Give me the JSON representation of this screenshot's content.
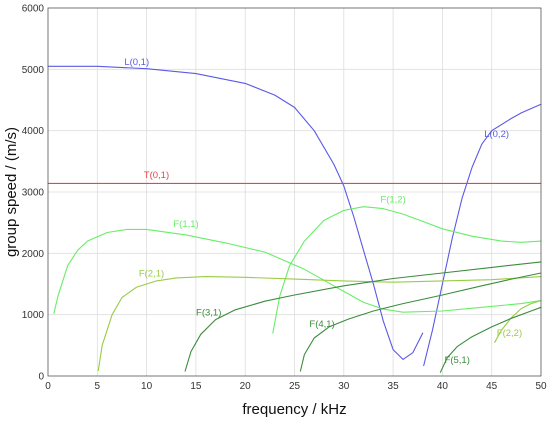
{
  "chart_data": {
    "type": "line",
    "xlabel": "frequency / kHz",
    "ylabel": "group speed / (m/s)",
    "xlim": [
      0,
      50
    ],
    "ylim": [
      0,
      6000
    ],
    "x_ticks": [
      0,
      5,
      10,
      15,
      20,
      25,
      30,
      35,
      40,
      45,
      50
    ],
    "y_ticks": [
      0,
      1000,
      2000,
      3000,
      4000,
      5000,
      6000
    ],
    "grid": true,
    "colors": {
      "longitudinal": "#5a5ae6",
      "torsional": "#e64646",
      "flexural_light": "#66ee66",
      "flexural_mid": "#99cc44",
      "flexural_dark": "#3c8c3c"
    },
    "series": [
      {
        "name": "L(0,1)",
        "color": "#5a5ae6",
        "label_at": [
          9,
          5070
        ],
        "points": [
          [
            0,
            5050
          ],
          [
            5,
            5050
          ],
          [
            10,
            5010
          ],
          [
            15,
            4930
          ],
          [
            20,
            4770
          ],
          [
            23,
            4580
          ],
          [
            25,
            4380
          ],
          [
            27,
            4000
          ],
          [
            29,
            3450
          ],
          [
            30,
            3100
          ],
          [
            31,
            2600
          ],
          [
            32,
            2050
          ],
          [
            33,
            1500
          ],
          [
            34,
            900
          ],
          [
            35,
            430
          ],
          [
            36,
            270
          ],
          [
            37,
            380
          ],
          [
            38,
            700
          ]
        ]
      },
      {
        "name": "L(0,2)",
        "color": "#5a5ae6",
        "label_at": [
          45.5,
          3900
        ],
        "points": [
          [
            38.1,
            170
          ],
          [
            39,
            750
          ],
          [
            40,
            1500
          ],
          [
            41,
            2250
          ],
          [
            42,
            2900
          ],
          [
            43,
            3400
          ],
          [
            44,
            3780
          ],
          [
            45,
            4000
          ],
          [
            47,
            4200
          ],
          [
            48,
            4290
          ],
          [
            50,
            4430
          ]
        ]
      },
      {
        "name": "T(0,1)",
        "color": "#e64646",
        "label_at": [
          11,
          3230
        ],
        "points": [
          [
            0,
            3140
          ],
          [
            50,
            3140
          ]
        ]
      },
      {
        "name": "F(1,1)",
        "color": "#66ee66",
        "label_at": [
          14,
          2430
        ],
        "points": [
          [
            0.6,
            1020
          ],
          [
            1,
            1300
          ],
          [
            2,
            1800
          ],
          [
            3,
            2050
          ],
          [
            4,
            2200
          ],
          [
            6,
            2340
          ],
          [
            8,
            2390
          ],
          [
            10,
            2390
          ],
          [
            14,
            2300
          ],
          [
            18,
            2170
          ],
          [
            22,
            2020
          ],
          [
            26,
            1740
          ],
          [
            28,
            1560
          ],
          [
            30,
            1380
          ],
          [
            32,
            1200
          ],
          [
            34,
            1090
          ],
          [
            36,
            1040
          ],
          [
            40,
            1060
          ],
          [
            44,
            1120
          ],
          [
            48,
            1180
          ],
          [
            50,
            1230
          ]
        ]
      },
      {
        "name": "F(1,2)",
        "color": "#66ee66",
        "label_at": [
          35,
          2830
        ],
        "points": [
          [
            22.8,
            700
          ],
          [
            23.5,
            1300
          ],
          [
            24.5,
            1800
          ],
          [
            26,
            2200
          ],
          [
            28,
            2540
          ],
          [
            30,
            2700
          ],
          [
            32,
            2760
          ],
          [
            34,
            2730
          ],
          [
            36,
            2640
          ],
          [
            38,
            2520
          ],
          [
            40,
            2400
          ],
          [
            43,
            2280
          ],
          [
            46,
            2200
          ],
          [
            48,
            2180
          ],
          [
            50,
            2200
          ]
        ]
      },
      {
        "name": "F(2,1)",
        "color": "#99cc44",
        "label_at": [
          10.5,
          1620
        ],
        "points": [
          [
            5.1,
            90
          ],
          [
            5.5,
            500
          ],
          [
            6.5,
            1000
          ],
          [
            7.5,
            1280
          ],
          [
            9,
            1450
          ],
          [
            11,
            1550
          ],
          [
            13,
            1600
          ],
          [
            16,
            1620
          ],
          [
            20,
            1610
          ],
          [
            25,
            1580
          ],
          [
            30,
            1550
          ],
          [
            35,
            1530
          ],
          [
            40,
            1550
          ],
          [
            45,
            1570
          ],
          [
            50,
            1620
          ]
        ]
      },
      {
        "name": "F(2,2)",
        "color": "#99cc44",
        "label_at": [
          46.8,
          650
        ],
        "points": [
          [
            45.3,
            550
          ],
          [
            46,
            750
          ],
          [
            47,
            950
          ],
          [
            48,
            1100
          ],
          [
            49,
            1180
          ],
          [
            50,
            1230
          ]
        ]
      },
      {
        "name": "F(3,1)",
        "color": "#3c8c3c",
        "label_at": [
          16.3,
          990
        ],
        "points": [
          [
            13.9,
            80
          ],
          [
            14.5,
            400
          ],
          [
            15.5,
            680
          ],
          [
            17,
            920
          ],
          [
            19,
            1080
          ],
          [
            22,
            1220
          ],
          [
            25,
            1320
          ],
          [
            30,
            1470
          ],
          [
            35,
            1590
          ],
          [
            40,
            1680
          ],
          [
            45,
            1770
          ],
          [
            50,
            1860
          ]
        ]
      },
      {
        "name": "F(4,1)",
        "color": "#3c8c3c",
        "label_at": [
          27.8,
          800
        ],
        "points": [
          [
            25.6,
            80
          ],
          [
            26,
            350
          ],
          [
            27,
            620
          ],
          [
            28.5,
            800
          ],
          [
            30.5,
            930
          ],
          [
            33,
            1060
          ],
          [
            36,
            1180
          ],
          [
            40,
            1320
          ],
          [
            44,
            1470
          ],
          [
            47,
            1580
          ],
          [
            50,
            1680
          ]
        ]
      },
      {
        "name": "F(5,1)",
        "color": "#3c8c3c",
        "label_at": [
          41.5,
          210
        ],
        "points": [
          [
            39.8,
            60
          ],
          [
            40.5,
            300
          ],
          [
            41.5,
            480
          ],
          [
            43,
            640
          ],
          [
            45,
            800
          ],
          [
            47,
            940
          ],
          [
            49,
            1060
          ],
          [
            50,
            1120
          ]
        ]
      }
    ]
  }
}
